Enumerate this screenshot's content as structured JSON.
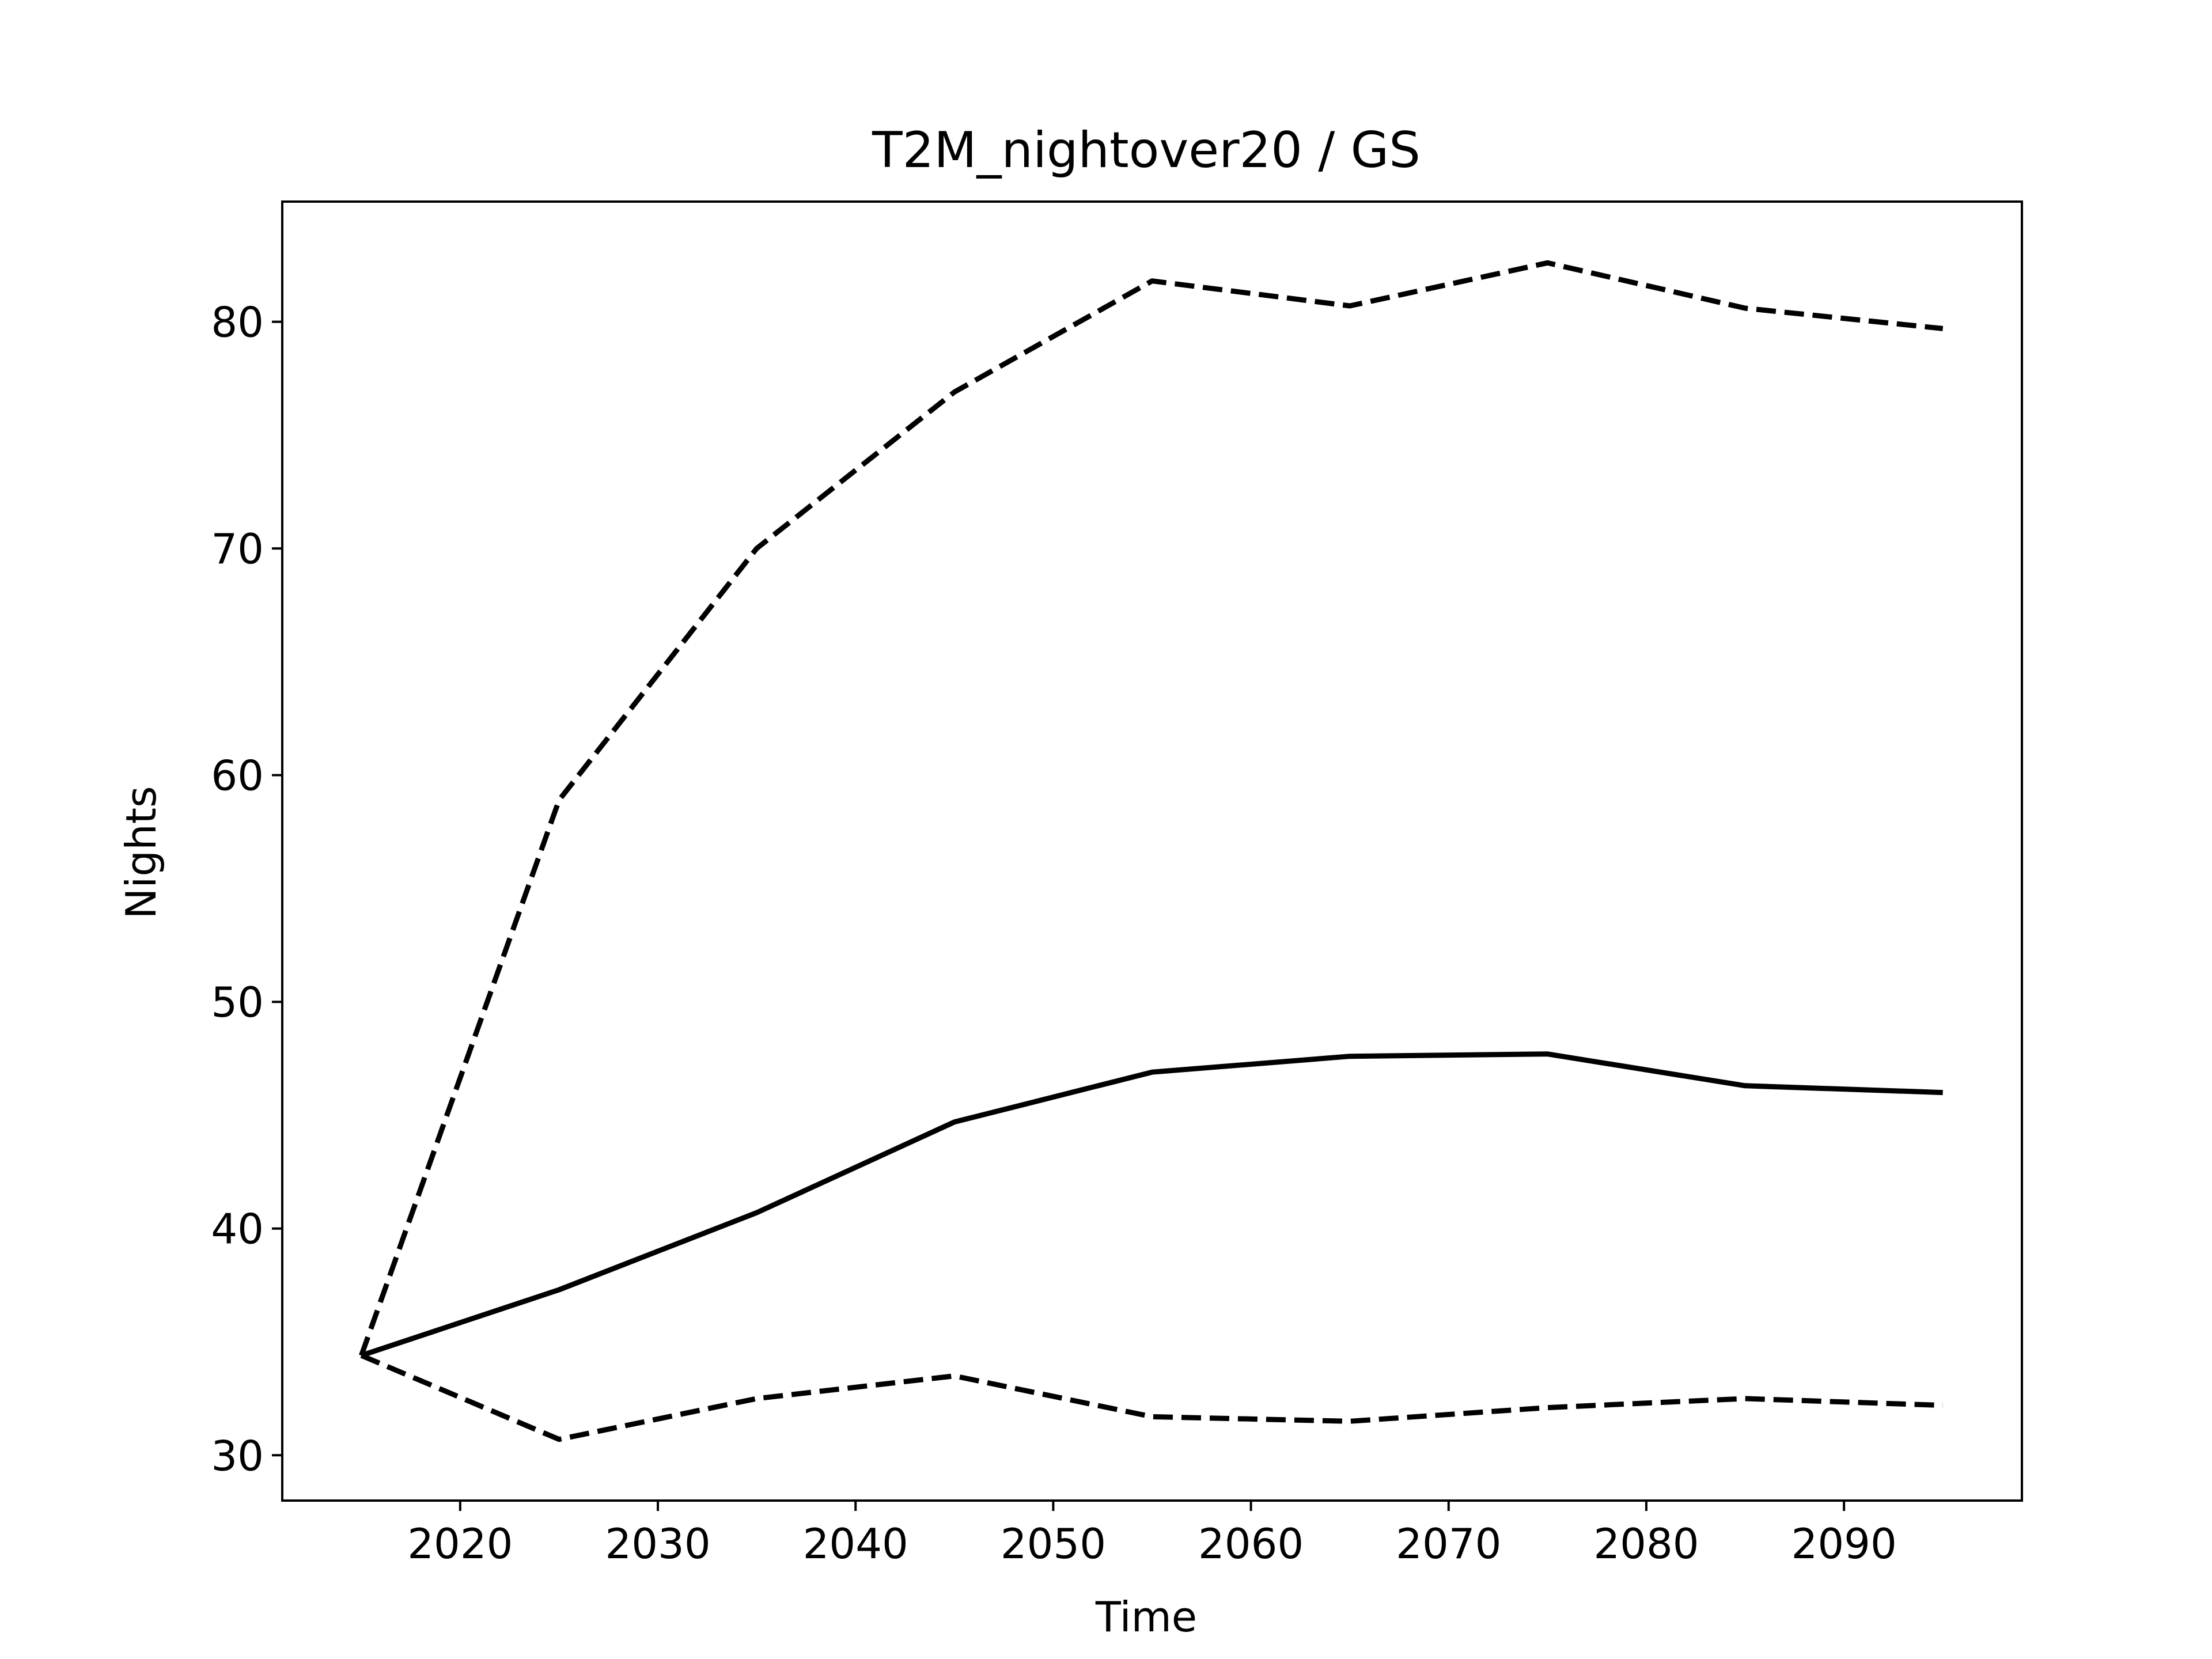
{
  "chart_data": {
    "type": "line",
    "title": "T2M_nightover20 / GS",
    "xlabel": "Time",
    "ylabel": "Nights",
    "xlim": [
      2011,
      2099
    ],
    "ylim": [
      28,
      85.3
    ],
    "x_ticks": [
      2020,
      2030,
      2040,
      2050,
      2060,
      2070,
      2080,
      2090
    ],
    "y_ticks": [
      30,
      40,
      50,
      60,
      70,
      80
    ],
    "grid": false,
    "legend": "none",
    "x": [
      2015,
      2025,
      2035,
      2045,
      2055,
      2065,
      2075,
      2085,
      2095
    ],
    "series": [
      {
        "style": "dashed",
        "color": "#000000",
        "values": [
          34.4,
          58.9,
          70.0,
          76.9,
          81.8,
          80.7,
          82.6,
          80.6,
          79.7
        ]
      },
      {
        "style": "solid",
        "color": "#000000",
        "values": [
          34.4,
          37.3,
          40.7,
          44.7,
          46.9,
          47.6,
          47.7,
          46.3,
          46.0
        ]
      },
      {
        "style": "dashed",
        "color": "#000000",
        "values": [
          34.4,
          30.7,
          32.5,
          33.5,
          31.7,
          31.5,
          32.1,
          32.5,
          32.2
        ]
      }
    ]
  }
}
